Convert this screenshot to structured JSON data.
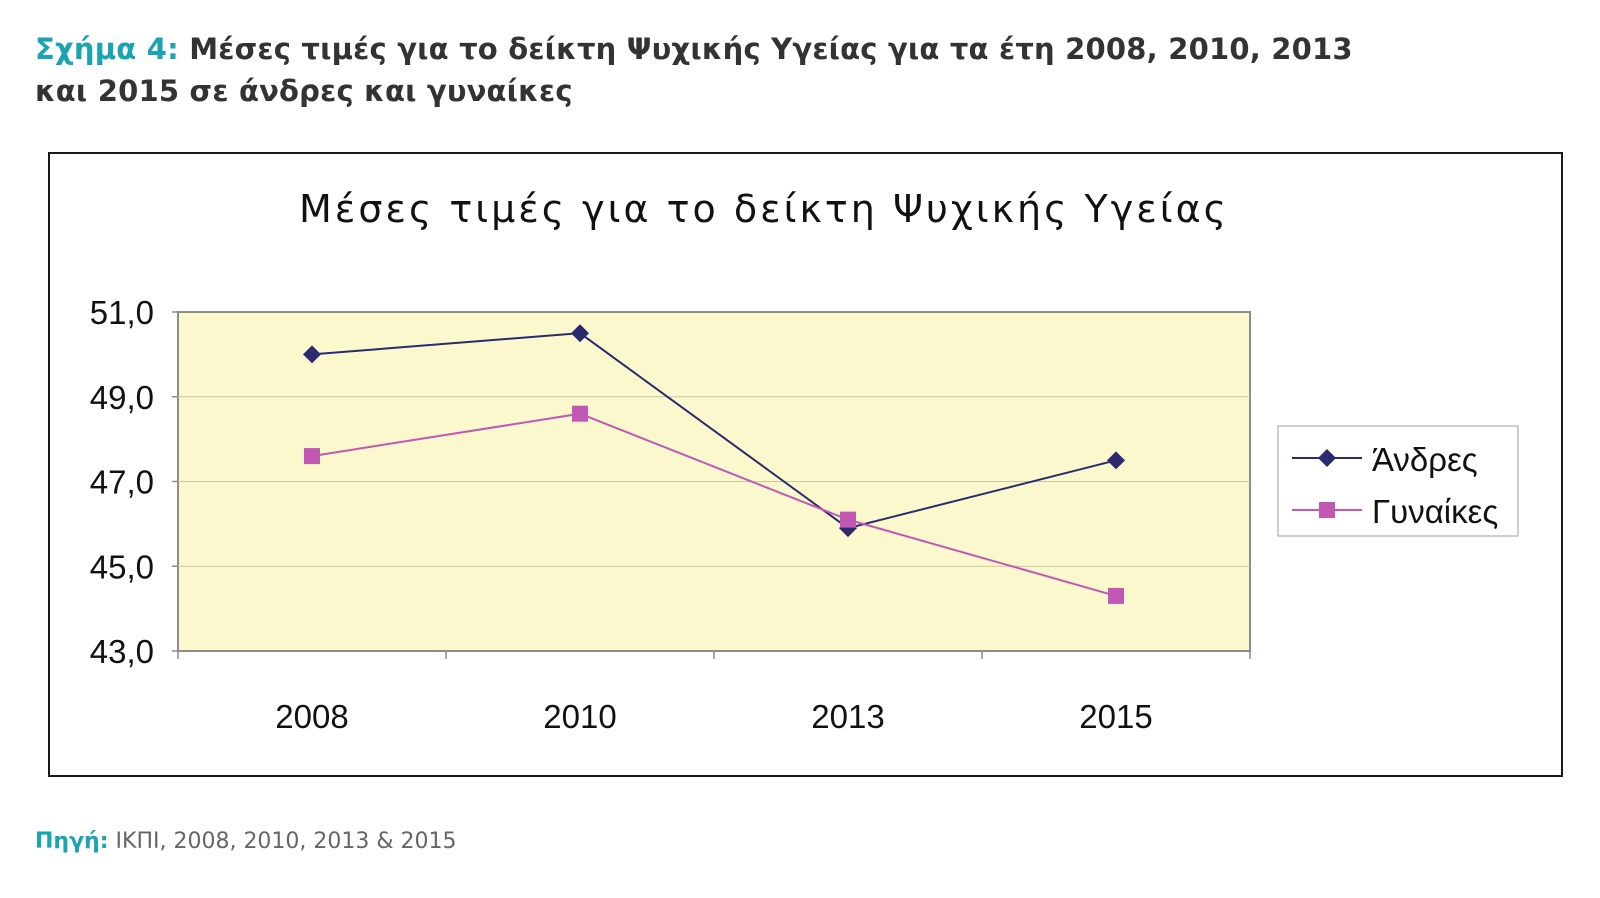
{
  "caption": {
    "label": "Σχήμα 4:",
    "text_line1": "Μέσες τιμές για το δείκτη Ψυχικής Υγείας για τα έτη 2008, 2010, 2013",
    "text_line2": "και 2015 σε άνδρες και γυναίκες"
  },
  "source": {
    "label": "Πηγή:",
    "text": "ΙΚΠΙ, 2008, 2010, 2013 & 2015"
  },
  "colors": {
    "accent": "#1aa3b1",
    "plot_background": "#fbf8cd",
    "men": "#2b2a6e",
    "women": "#c058b4"
  },
  "chart_data": {
    "type": "line",
    "title": "Μέσες τιμές για το δείκτη Ψυχικής Υγείας",
    "categories": [
      "2008",
      "2010",
      "2013",
      "2015"
    ],
    "ylim": [
      43.0,
      51.0
    ],
    "yticks": [
      "51,0",
      "49,0",
      "47,0",
      "45,0",
      "43,0"
    ],
    "ytick_values": [
      51,
      49,
      47,
      45,
      43
    ],
    "grid": true,
    "legend_position": "right",
    "series": [
      {
        "name": "Άνδρες",
        "marker": "diamond",
        "values": [
          50.0,
          50.5,
          45.9,
          47.5
        ]
      },
      {
        "name": "Γυναίκες",
        "marker": "square",
        "values": [
          47.6,
          48.6,
          46.1,
          44.3
        ]
      }
    ]
  }
}
